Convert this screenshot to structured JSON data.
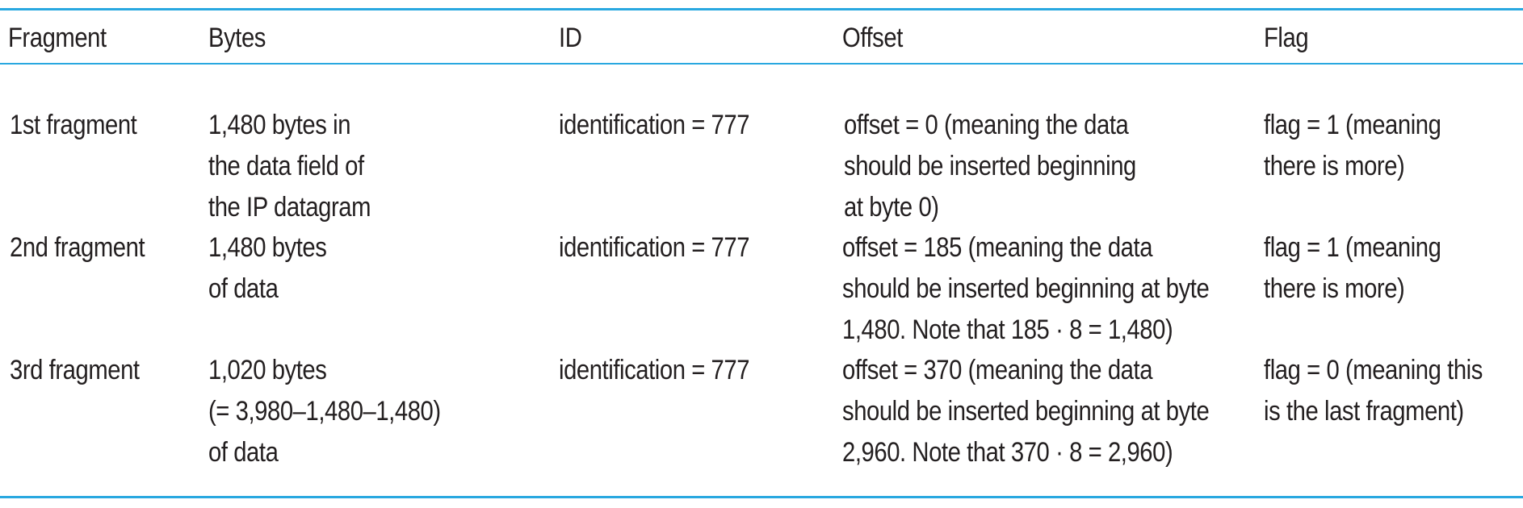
{
  "table": {
    "headers": {
      "fragment": "Fragment",
      "bytes": "Bytes",
      "id": "ID",
      "offset": "Offset",
      "flag": "Flag"
    },
    "rows": [
      {
        "fragment": "1st fragment",
        "bytes": [
          "1,480 bytes in",
          "the data field of",
          "the IP datagram"
        ],
        "id": "identification = 777",
        "offset": [
          "offset = 0 (meaning the data",
          "should be inserted beginning",
          "at byte 0)"
        ],
        "flag": [
          "flag = 1 (meaning",
          "there is more)"
        ]
      },
      {
        "fragment": "2nd fragment",
        "bytes": [
          "1,480 bytes",
          "of data"
        ],
        "id": "identification = 777",
        "offset": [
          "offset = 185 (meaning the data",
          "should be inserted beginning at byte",
          "1,480. Note that 185 · 8 = 1,480)"
        ],
        "flag": [
          "flag = 1 (meaning",
          "there is more)"
        ]
      },
      {
        "fragment": "3rd fragment",
        "bytes": [
          "1,020 bytes",
          "(= 3,980–1,480–1,480)",
          "of data"
        ],
        "id": "identification = 777",
        "offset": [
          "offset = 370 (meaning the data",
          "should be inserted beginning at byte",
          "2,960. Note that 370 · 8 = 2,960)"
        ],
        "flag": [
          "flag = 0 (meaning this",
          "is the last fragment)"
        ]
      }
    ],
    "colors": {
      "rule": "#29a8e0",
      "text": "#231f20"
    }
  }
}
